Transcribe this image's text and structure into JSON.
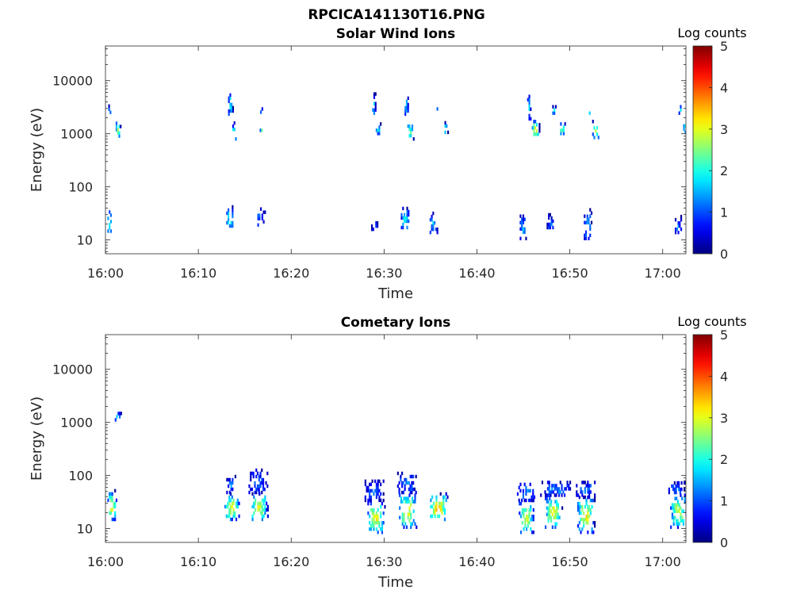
{
  "figure_title": "RPCICA141130T16.PNG",
  "chart_data": [
    {
      "type": "heatmap",
      "title": "Solar Wind Ions",
      "xlabel": "Time",
      "ylabel": "Energy (eV)",
      "x_tick_labels": [
        "16:00",
        "16:10",
        "16:20",
        "16:30",
        "16:40",
        "16:50",
        "17:00"
      ],
      "x_tick_minutes": [
        0,
        10,
        20,
        30,
        40,
        50,
        60
      ],
      "xlim_minutes": [
        0,
        62.5
      ],
      "y_scale": "log",
      "ylim": [
        5.5,
        45000
      ],
      "y_tick_labels": [
        "10",
        "100",
        "1000",
        "10000"
      ],
      "y_tick_values": [
        10,
        100,
        1000,
        10000
      ],
      "colorbar": {
        "label": "Log counts",
        "range": [
          0,
          5
        ],
        "tick_labels": [
          "0",
          "1",
          "2",
          "3",
          "4",
          "5"
        ]
      },
      "clusters": [
        {
          "t": 0.2,
          "dt": 0.5,
          "e1": 12,
          "e2": 38,
          "peak": 2.2
        },
        {
          "t": 0.3,
          "dt": 0.3,
          "e1": 1800,
          "e2": 3200,
          "peak": 1.8
        },
        {
          "t": 1.1,
          "dt": 0.5,
          "e1": 850,
          "e2": 1700,
          "peak": 2.9
        },
        {
          "t": 13.0,
          "dt": 0.8,
          "e1": 15,
          "e2": 40,
          "peak": 2.1
        },
        {
          "t": 13.2,
          "dt": 0.5,
          "e1": 2200,
          "e2": 6000,
          "peak": 2.0
        },
        {
          "t": 13.5,
          "dt": 0.6,
          "e1": 750,
          "e2": 1500,
          "peak": 2.2
        },
        {
          "t": 16.2,
          "dt": 0.9,
          "e1": 18,
          "e2": 36,
          "peak": 1.2
        },
        {
          "t": 16.5,
          "dt": 0.3,
          "e1": 2400,
          "e2": 3500,
          "peak": 1.8
        },
        {
          "t": 16.6,
          "dt": 0.4,
          "e1": 950,
          "e2": 1500,
          "peak": 2.2
        },
        {
          "t": 28.6,
          "dt": 0.7,
          "e1": 13,
          "e2": 24,
          "peak": 1.0
        },
        {
          "t": 28.7,
          "dt": 0.4,
          "e1": 2000,
          "e2": 5500,
          "peak": 1.8
        },
        {
          "t": 29.1,
          "dt": 0.5,
          "e1": 950,
          "e2": 1500,
          "peak": 2.0
        },
        {
          "t": 31.8,
          "dt": 0.9,
          "e1": 14,
          "e2": 40,
          "peak": 2.0
        },
        {
          "t": 32.2,
          "dt": 0.4,
          "e1": 2200,
          "e2": 5800,
          "peak": 1.8
        },
        {
          "t": 32.5,
          "dt": 0.6,
          "e1": 750,
          "e2": 1600,
          "peak": 2.5
        },
        {
          "t": 34.9,
          "dt": 0.8,
          "e1": 13,
          "e2": 30,
          "peak": 1.6
        },
        {
          "t": 35.5,
          "dt": 0.3,
          "e1": 2400,
          "e2": 3500,
          "peak": 1.8
        },
        {
          "t": 36.2,
          "dt": 0.6,
          "e1": 1000,
          "e2": 1600,
          "peak": 2.4
        },
        {
          "t": 44.6,
          "dt": 0.7,
          "e1": 10,
          "e2": 28,
          "peak": 1.5
        },
        {
          "t": 45.4,
          "dt": 0.4,
          "e1": 1800,
          "e2": 5500,
          "peak": 1.8
        },
        {
          "t": 45.9,
          "dt": 0.8,
          "e1": 800,
          "e2": 1800,
          "peak": 3.2
        },
        {
          "t": 47.5,
          "dt": 0.8,
          "e1": 14,
          "e2": 28,
          "peak": 1.2
        },
        {
          "t": 48.1,
          "dt": 0.4,
          "e1": 2300,
          "e2": 3300,
          "peak": 1.8
        },
        {
          "t": 48.8,
          "dt": 0.7,
          "e1": 950,
          "e2": 1600,
          "peak": 2.6
        },
        {
          "t": 51.5,
          "dt": 0.8,
          "e1": 10,
          "e2": 35,
          "peak": 1.6
        },
        {
          "t": 51.9,
          "dt": 0.4,
          "e1": 2000,
          "e2": 3400,
          "peak": 1.8
        },
        {
          "t": 52.4,
          "dt": 0.8,
          "e1": 800,
          "e2": 1600,
          "peak": 3.0
        },
        {
          "t": 61.3,
          "dt": 0.7,
          "e1": 13,
          "e2": 26,
          "peak": 1.3
        },
        {
          "t": 61.7,
          "dt": 0.4,
          "e1": 2300,
          "e2": 3400,
          "peak": 1.8
        },
        {
          "t": 62.2,
          "dt": 0.4,
          "e1": 1000,
          "e2": 1600,
          "peak": 2.4
        }
      ]
    },
    {
      "type": "heatmap",
      "title": "Cometary Ions",
      "xlabel": "Time",
      "ylabel": "Energy (eV)",
      "x_tick_labels": [
        "16:00",
        "16:10",
        "16:20",
        "16:30",
        "16:40",
        "16:50",
        "17:00"
      ],
      "x_tick_minutes": [
        0,
        10,
        20,
        30,
        40,
        50,
        60
      ],
      "xlim_minutes": [
        0,
        62.5
      ],
      "y_scale": "log",
      "ylim": [
        5.5,
        45000
      ],
      "y_tick_labels": [
        "10",
        "100",
        "1000",
        "10000"
      ],
      "y_tick_values": [
        10,
        100,
        1000,
        10000
      ],
      "colorbar": {
        "label": "Log counts",
        "range": [
          0,
          5
        ],
        "tick_labels": [
          "0",
          "1",
          "2",
          "3",
          "4",
          "5"
        ]
      },
      "clusters": [
        {
          "t": 0.2,
          "dt": 1.0,
          "e1": 14,
          "e2": 50,
          "peak": 3.4
        },
        {
          "t": 1.0,
          "dt": 0.6,
          "e1": 1050,
          "e2": 1500,
          "peak": 2.2
        },
        {
          "t": 12.8,
          "dt": 1.6,
          "e1": 14,
          "e2": 45,
          "peak": 3.3
        },
        {
          "t": 13.0,
          "dt": 1.0,
          "e1": 45,
          "e2": 95,
          "peak": 1.2
        },
        {
          "t": 13.5,
          "dt": 0.4,
          "e1": 1050,
          "e2": 1450,
          "peak": 1.8
        },
        {
          "t": 15.6,
          "dt": 1.8,
          "e1": 14,
          "e2": 45,
          "peak": 3.3
        },
        {
          "t": 15.4,
          "dt": 2.0,
          "e1": 45,
          "e2": 120,
          "peak": 1.1
        },
        {
          "t": 28.2,
          "dt": 1.8,
          "e1": 8,
          "e2": 32,
          "peak": 3.3
        },
        {
          "t": 27.9,
          "dt": 2.0,
          "e1": 32,
          "e2": 80,
          "peak": 1.1
        },
        {
          "t": 31.6,
          "dt": 1.8,
          "e1": 10,
          "e2": 45,
          "peak": 3.4
        },
        {
          "t": 31.4,
          "dt": 2.0,
          "e1": 45,
          "e2": 110,
          "peak": 1.2
        },
        {
          "t": 34.8,
          "dt": 2.0,
          "e1": 14,
          "e2": 45,
          "peak": 3.6
        },
        {
          "t": 44.5,
          "dt": 1.6,
          "e1": 8,
          "e2": 32,
          "peak": 3.1
        },
        {
          "t": 44.3,
          "dt": 2.0,
          "e1": 32,
          "e2": 70,
          "peak": 1.3
        },
        {
          "t": 47.3,
          "dt": 1.8,
          "e1": 10,
          "e2": 40,
          "peak": 3.3
        },
        {
          "t": 46.8,
          "dt": 3.2,
          "e1": 40,
          "e2": 75,
          "peak": 1.3
        },
        {
          "t": 50.8,
          "dt": 1.8,
          "e1": 8,
          "e2": 40,
          "peak": 3.3
        },
        {
          "t": 50.5,
          "dt": 2.2,
          "e1": 40,
          "e2": 75,
          "peak": 1.2
        },
        {
          "t": 60.8,
          "dt": 1.8,
          "e1": 10,
          "e2": 45,
          "peak": 3.0
        },
        {
          "t": 60.6,
          "dt": 1.8,
          "e1": 45,
          "e2": 75,
          "peak": 1.2
        }
      ]
    }
  ]
}
